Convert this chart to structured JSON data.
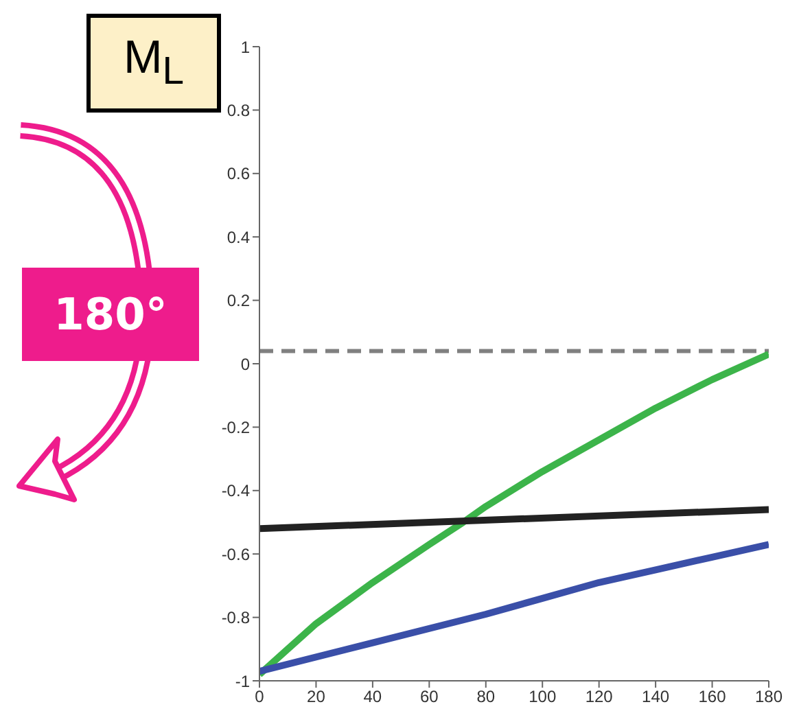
{
  "chart_data": {
    "type": "line",
    "title": "M$_{L}$",
    "annotations": [
      "180°"
    ],
    "xlim": [
      0,
      180
    ],
    "xticks": [
      0,
      20,
      40,
      60,
      80,
      100,
      120,
      140,
      160,
      180
    ],
    "ylim": [
      -1,
      1
    ],
    "yticks": [
      -1,
      -0.8,
      -0.6,
      -0.4,
      -0.2,
      0,
      0.2,
      0.4,
      0.6,
      0.8,
      1
    ],
    "grid": false,
    "legend": false,
    "marker": "none",
    "line_style": "solid",
    "ref_lines": [
      {
        "axis": "y",
        "value": 0.04,
        "color": "#808080",
        "line_style": "dashed"
      }
    ],
    "series": [
      {
        "color": "#3cb44a",
        "x": [
          0,
          20,
          40,
          60,
          72,
          80,
          100,
          120,
          140,
          160,
          180
        ],
        "values": [
          -0.98,
          -0.82,
          -0.69,
          -0.57,
          -0.5,
          -0.45,
          -0.34,
          -0.24,
          -0.14,
          -0.05,
          0.03
        ]
      },
      {
        "color": "#222222",
        "x": [
          0,
          180
        ],
        "values": [
          -0.52,
          -0.46
        ]
      },
      {
        "color": "#3a4fa8",
        "x": [
          0,
          40,
          80,
          100,
          120,
          140,
          160,
          180
        ],
        "values": [
          -0.97,
          -0.88,
          -0.79,
          -0.74,
          -0.69,
          -0.65,
          -0.61,
          -0.57
        ]
      }
    ]
  }
}
